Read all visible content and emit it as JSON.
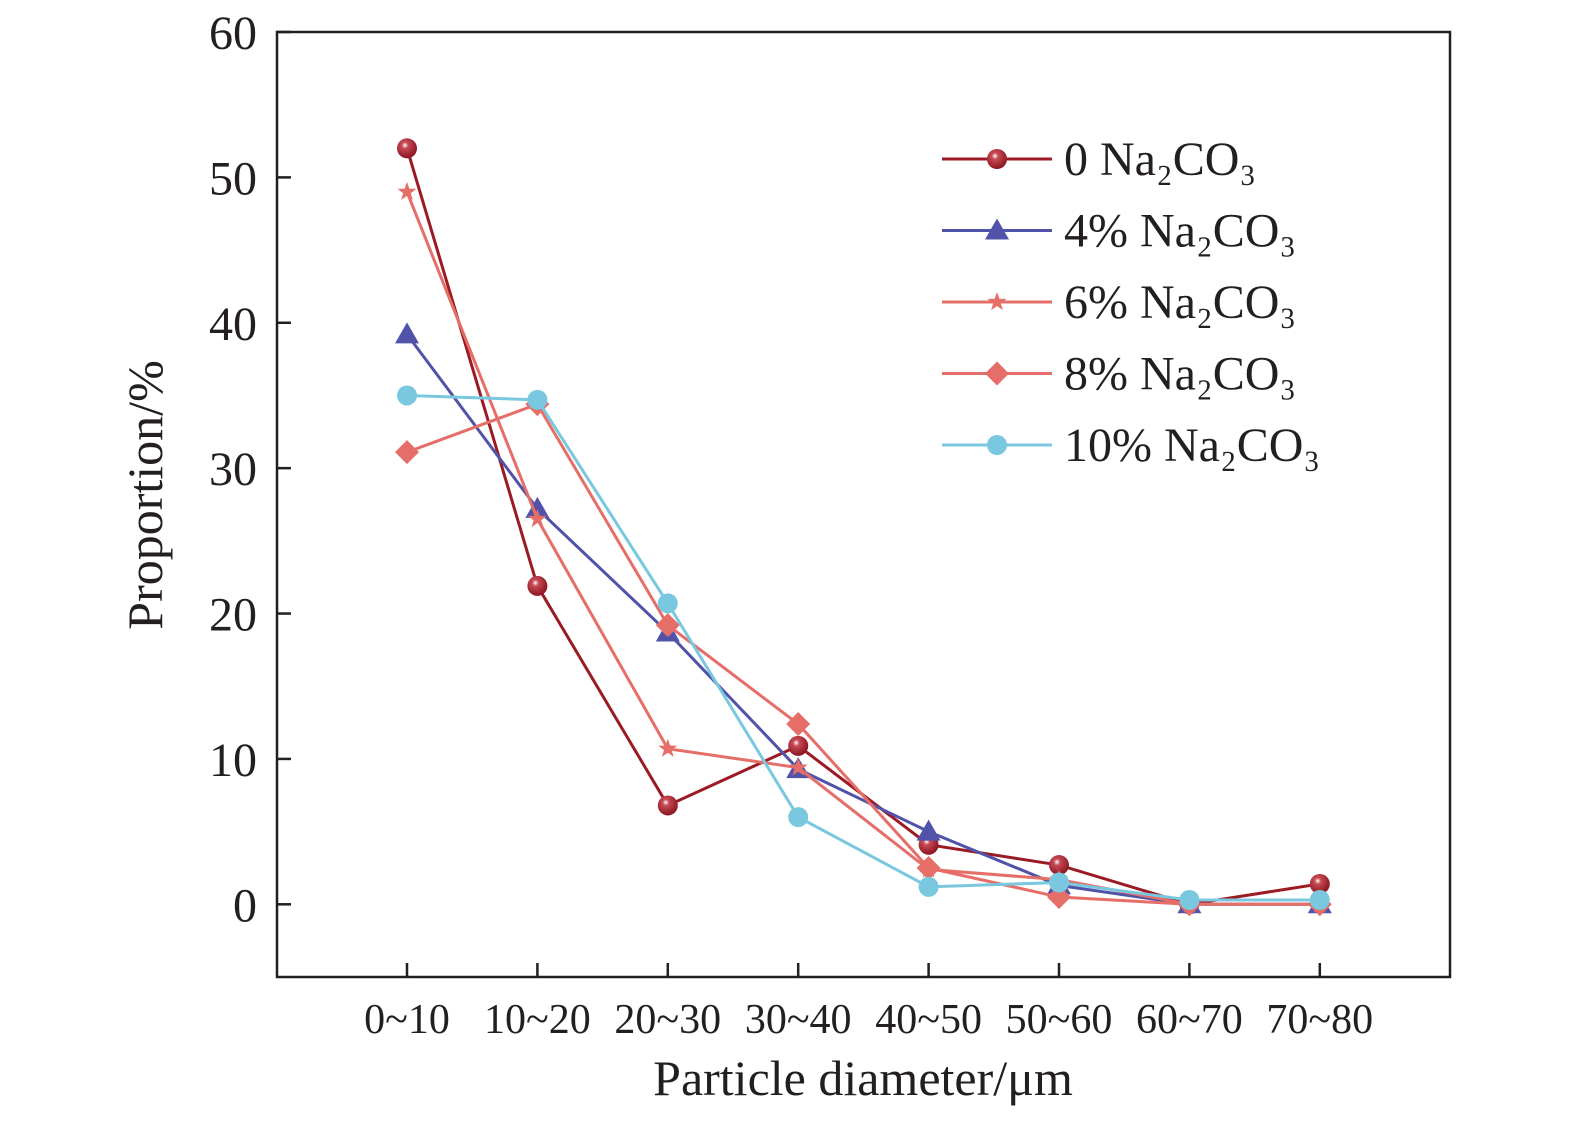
{
  "chart_data": {
    "type": "line",
    "title": "",
    "xlabel": "Particle diameter/μm",
    "ylabel": "Proportion/%",
    "categories": [
      "0~10",
      "10~20",
      "20~30",
      "30~40",
      "40~50",
      "50~60",
      "60~70",
      "70~80"
    ],
    "ylim": [
      -5,
      60
    ],
    "yticks": [
      0,
      10,
      20,
      30,
      40,
      50,
      60
    ],
    "grid": false,
    "legend_position": "top-right",
    "series": [
      {
        "name": "0 Na₂CO₃",
        "color": "#9b1b24",
        "marker": "sphere",
        "values": [
          52.0,
          21.9,
          6.8,
          10.9,
          4.1,
          2.7,
          0.0,
          1.4
        ]
      },
      {
        "name": "4% Na₂CO₃",
        "color": "#5053a8",
        "marker": "triangle",
        "values": [
          39.2,
          27.2,
          18.7,
          9.3,
          5.0,
          1.3,
          0.0,
          0.0
        ]
      },
      {
        "name": "6% Na₂CO₃",
        "color": "#e66e68",
        "marker": "star",
        "values": [
          49.0,
          26.5,
          10.7,
          9.4,
          2.4,
          1.7,
          0.0,
          0.0
        ]
      },
      {
        "name": "8% Na₂CO₃",
        "color": "#e66e68",
        "marker": "diamond",
        "values": [
          31.1,
          34.4,
          19.2,
          12.4,
          2.5,
          0.5,
          0.0,
          0.0
        ]
      },
      {
        "name": "10% Na₂CO₃",
        "color": "#79c8df",
        "marker": "circle",
        "values": [
          35.0,
          34.7,
          20.7,
          6.0,
          1.2,
          1.5,
          0.3,
          0.3
        ]
      }
    ]
  }
}
